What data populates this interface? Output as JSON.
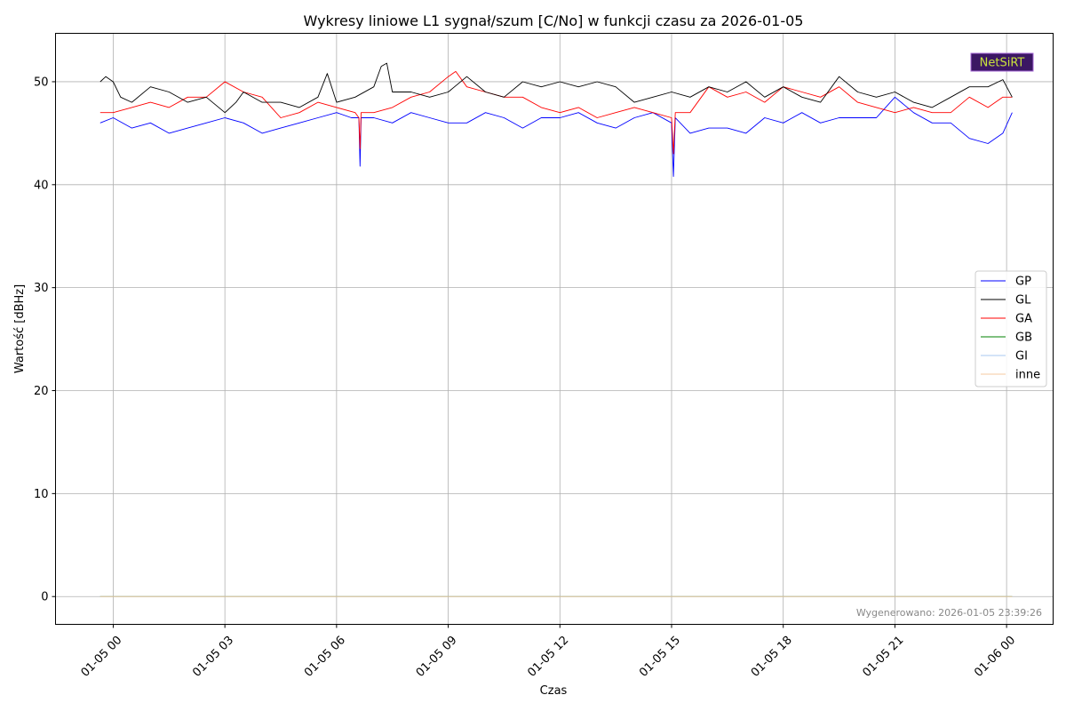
{
  "chart_data": {
    "type": "line",
    "title": "Wykresy liniowe L1 sygnał/szum [C/No] w funkcji czasu za 2026-01-05",
    "xlabel": "Czas",
    "ylabel": "Wartość [dBHz]",
    "x_tick_labels": [
      "01-05 00",
      "01-05 03",
      "01-05 06",
      "01-05 09",
      "01-05 12",
      "01-05 15",
      "01-05 18",
      "01-05 21",
      "01-06 00"
    ],
    "y_ticks": [
      0,
      10,
      20,
      30,
      40,
      50
    ],
    "xlim_hours": [
      -1.55,
      25.25
    ],
    "ylim": [
      -2.7,
      54.7
    ],
    "grid": true,
    "legend_position": "center-right",
    "footnote": "Wygenerowano: 2026-01-05 23:39:26",
    "logo_text": "NetSiRT",
    "series": [
      {
        "name": "GP",
        "color": "#0000ff",
        "x_hours": [
          -0.35,
          0.0,
          0.5,
          1.0,
          1.5,
          2.0,
          2.5,
          3.0,
          3.5,
          4.0,
          4.5,
          5.0,
          5.5,
          6.0,
          6.4,
          6.6,
          6.63,
          6.66,
          7.0,
          7.5,
          8.0,
          8.5,
          9.0,
          9.5,
          10.0,
          10.5,
          11.0,
          11.5,
          12.0,
          12.5,
          13.0,
          13.5,
          14.0,
          14.5,
          15.0,
          15.05,
          15.1,
          15.5,
          16.0,
          16.5,
          17.0,
          17.5,
          18.0,
          18.5,
          19.0,
          19.5,
          20.0,
          20.5,
          21.0,
          21.5,
          22.0,
          22.5,
          23.0,
          23.5,
          23.9,
          24.15
        ],
        "values": [
          46.0,
          46.5,
          45.5,
          46.0,
          45.0,
          45.5,
          46.0,
          46.5,
          46.0,
          45.0,
          45.5,
          46.0,
          46.5,
          47.0,
          46.5,
          46.5,
          41.8,
          46.5,
          46.5,
          46.0,
          47.0,
          46.5,
          46.0,
          46.0,
          47.0,
          46.5,
          45.5,
          46.5,
          46.5,
          47.0,
          46.0,
          45.5,
          46.5,
          47.0,
          46.0,
          40.8,
          46.5,
          45.0,
          45.5,
          45.5,
          45.0,
          46.5,
          46.0,
          47.0,
          46.0,
          46.5,
          46.5,
          46.5,
          48.5,
          47.0,
          46.0,
          46.0,
          44.5,
          44.0,
          45.0,
          47.0
        ]
      },
      {
        "name": "GL",
        "color": "#000000",
        "x_hours": [
          -0.35,
          -0.2,
          0.0,
          0.2,
          0.5,
          1.0,
          1.5,
          2.0,
          2.5,
          3.0,
          3.3,
          3.5,
          4.0,
          4.5,
          5.0,
          5.5,
          5.75,
          6.0,
          6.5,
          7.0,
          7.2,
          7.35,
          7.5,
          8.0,
          8.5,
          9.0,
          9.5,
          10.0,
          10.5,
          11.0,
          11.5,
          12.0,
          12.5,
          13.0,
          13.5,
          14.0,
          14.5,
          15.0,
          15.5,
          16.0,
          16.5,
          17.0,
          17.5,
          18.0,
          18.5,
          19.0,
          19.5,
          20.0,
          20.5,
          21.0,
          21.5,
          22.0,
          22.5,
          23.0,
          23.5,
          23.9,
          24.15
        ],
        "values": [
          50.0,
          50.5,
          50.0,
          48.5,
          48.0,
          49.5,
          49.0,
          48.0,
          48.5,
          47.0,
          48.0,
          49.0,
          48.0,
          48.0,
          47.5,
          48.5,
          50.8,
          48.0,
          48.5,
          49.5,
          51.5,
          51.8,
          49.0,
          49.0,
          48.5,
          49.0,
          50.5,
          49.0,
          48.5,
          50.0,
          49.5,
          50.0,
          49.5,
          50.0,
          49.5,
          48.0,
          48.5,
          49.0,
          48.5,
          49.5,
          49.0,
          50.0,
          48.5,
          49.5,
          48.5,
          48.0,
          50.5,
          49.0,
          48.5,
          49.0,
          48.0,
          47.5,
          48.5,
          49.5,
          49.5,
          50.2,
          48.5
        ]
      },
      {
        "name": "GA",
        "color": "#ff0000",
        "x_hours": [
          -0.35,
          0.0,
          0.5,
          1.0,
          1.5,
          2.0,
          2.5,
          3.0,
          3.5,
          4.0,
          4.5,
          5.0,
          5.5,
          6.0,
          6.5,
          6.6,
          6.63,
          6.66,
          7.0,
          7.5,
          8.0,
          8.5,
          9.0,
          9.2,
          9.5,
          10.0,
          10.5,
          11.0,
          11.5,
          12.0,
          12.5,
          13.0,
          13.5,
          14.0,
          14.5,
          15.0,
          15.05,
          15.1,
          15.5,
          16.0,
          16.5,
          17.0,
          17.5,
          18.0,
          18.5,
          19.0,
          19.5,
          20.0,
          20.5,
          21.0,
          21.5,
          22.0,
          22.5,
          23.0,
          23.5,
          23.9,
          24.15
        ],
        "values": [
          47.0,
          47.0,
          47.5,
          48.0,
          47.5,
          48.5,
          48.5,
          50.0,
          49.0,
          48.5,
          46.5,
          47.0,
          48.0,
          47.5,
          47.0,
          46.5,
          43.5,
          47.0,
          47.0,
          47.5,
          48.5,
          49.0,
          50.5,
          51.0,
          49.5,
          49.0,
          48.5,
          48.5,
          47.5,
          47.0,
          47.5,
          46.5,
          47.0,
          47.5,
          47.0,
          46.5,
          43.0,
          47.0,
          47.0,
          49.5,
          48.5,
          49.0,
          48.0,
          49.5,
          49.0,
          48.5,
          49.5,
          48.0,
          47.5,
          47.0,
          47.5,
          47.0,
          47.0,
          48.5,
          47.5,
          48.5,
          48.5
        ]
      },
      {
        "name": "GB",
        "color": "#008000",
        "x_hours": [
          -0.35,
          24.15
        ],
        "values": [
          0,
          0
        ]
      },
      {
        "name": "GI",
        "color": "#aac8f0",
        "x_hours": [
          -0.35,
          24.15
        ],
        "values": [
          0,
          0
        ]
      },
      {
        "name": "inne",
        "color": "#f5c9a0",
        "x_hours": [
          -0.35,
          24.15
        ],
        "values": [
          0,
          0
        ]
      }
    ]
  }
}
